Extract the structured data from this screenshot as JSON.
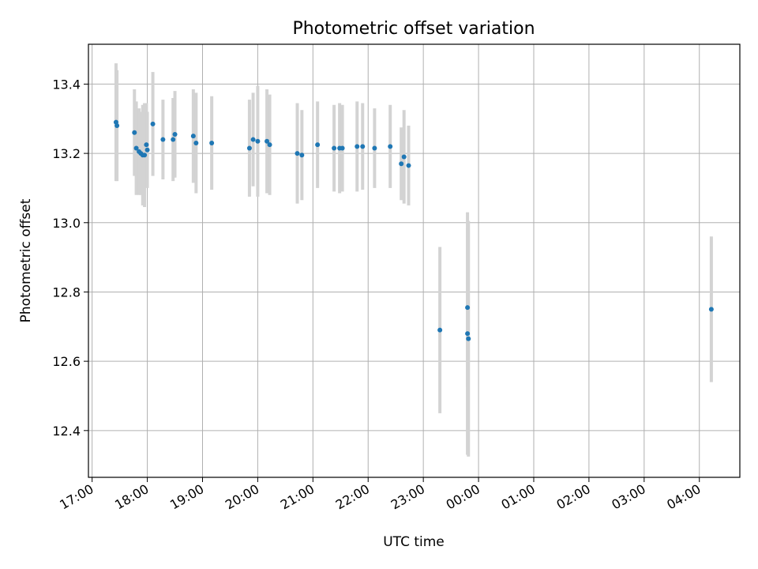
{
  "chart_data": {
    "type": "scatter",
    "title": "Photometric offset variation",
    "xlabel": "UTC time",
    "ylabel": "Photometric offset",
    "xlim": [
      "16:56",
      "04:44 (+1 day)"
    ],
    "ylim": [
      12.265,
      13.515
    ],
    "grid": true,
    "x_tick_labels": [
      "17:00",
      "18:00",
      "19:00",
      "20:00",
      "21:00",
      "22:00",
      "23:00",
      "00:00",
      "01:00",
      "02:00",
      "03:00",
      "04:00"
    ],
    "y_ticks": [
      12.4,
      12.6,
      12.8,
      13.0,
      13.2,
      13.4
    ],
    "y_tick_labels": [
      "12.4",
      "12.6",
      "12.8",
      "13.0",
      "13.2",
      "13.4"
    ],
    "marker_color": "#1f77b4",
    "errorbar_color": "#d3d3d3",
    "points": [
      {
        "time": "17:26",
        "y": 13.29,
        "yerr": 0.17
      },
      {
        "time": "17:27",
        "y": 13.28,
        "yerr": 0.16
      },
      {
        "time": "17:46",
        "y": 13.26,
        "yerr": 0.125
      },
      {
        "time": "17:48",
        "y": 13.215,
        "yerr": 0.135
      },
      {
        "time": "17:51",
        "y": 13.205,
        "yerr": 0.125
      },
      {
        "time": "17:53",
        "y": 13.2,
        "yerr": 0.12
      },
      {
        "time": "17:55",
        "y": 13.195,
        "yerr": 0.145
      },
      {
        "time": "17:57",
        "y": 13.195,
        "yerr": 0.15
      },
      {
        "time": "17:59",
        "y": 13.225,
        "yerr": 0.12
      },
      {
        "time": "18:00",
        "y": 13.21,
        "yerr": 0.11
      },
      {
        "time": "18:06",
        "y": 13.285,
        "yerr": 0.15
      },
      {
        "time": "18:17",
        "y": 13.24,
        "yerr": 0.115
      },
      {
        "time": "18:28",
        "y": 13.24,
        "yerr": 0.12
      },
      {
        "time": "18:30",
        "y": 13.255,
        "yerr": 0.125
      },
      {
        "time": "18:50",
        "y": 13.25,
        "yerr": 0.135
      },
      {
        "time": "18:53",
        "y": 13.23,
        "yerr": 0.145
      },
      {
        "time": "19:10",
        "y": 13.23,
        "yerr": 0.135
      },
      {
        "time": "19:51",
        "y": 13.215,
        "yerr": 0.14
      },
      {
        "time": "19:55",
        "y": 13.24,
        "yerr": 0.135
      },
      {
        "time": "20:00",
        "y": 13.235,
        "yerr": 0.16
      },
      {
        "time": "20:10",
        "y": 13.235,
        "yerr": 0.15
      },
      {
        "time": "20:13",
        "y": 13.225,
        "yerr": 0.145
      },
      {
        "time": "20:43",
        "y": 13.2,
        "yerr": 0.145
      },
      {
        "time": "20:48",
        "y": 13.195,
        "yerr": 0.13
      },
      {
        "time": "21:05",
        "y": 13.225,
        "yerr": 0.125
      },
      {
        "time": "21:23",
        "y": 13.215,
        "yerr": 0.125
      },
      {
        "time": "21:29",
        "y": 13.215,
        "yerr": 0.13
      },
      {
        "time": "21:32",
        "y": 13.215,
        "yerr": 0.125
      },
      {
        "time": "21:48",
        "y": 13.22,
        "yerr": 0.13
      },
      {
        "time": "21:54",
        "y": 13.22,
        "yerr": 0.125
      },
      {
        "time": "22:07",
        "y": 13.215,
        "yerr": 0.115
      },
      {
        "time": "22:24",
        "y": 13.22,
        "yerr": 0.12
      },
      {
        "time": "22:36",
        "y": 13.17,
        "yerr": 0.105
      },
      {
        "time": "22:39",
        "y": 13.19,
        "yerr": 0.135
      },
      {
        "time": "22:44",
        "y": 13.165,
        "yerr": 0.115
      },
      {
        "time": "23:18",
        "y": 12.69,
        "yerr": 0.24
      },
      {
        "time": "23:48",
        "y": 12.755,
        "yerr": 0.23
      },
      {
        "time": "23:48",
        "y": 12.68,
        "yerr": 0.35
      },
      {
        "time": "23:49",
        "y": 12.665,
        "yerr": 0.34
      },
      {
        "time": "04:13 (+1 day)",
        "y": 12.75,
        "yerr": 0.21
      }
    ]
  }
}
